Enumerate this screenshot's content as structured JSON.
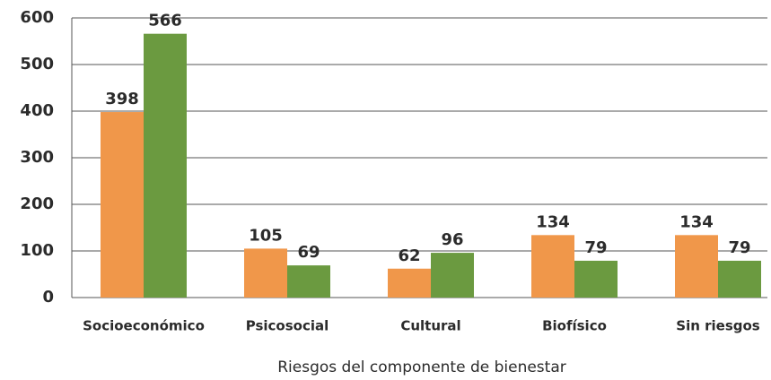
{
  "chart_data": {
    "type": "bar",
    "x_label": "Riesgos del componente de bienestar",
    "categories": [
      "Socioeconómico",
      "Psicosocial",
      "Cultural",
      "Biofísico",
      "Sin riesgos"
    ],
    "series": [
      {
        "color": "#f0974a",
        "values": [
          398,
          105,
          62,
          134,
          134
        ]
      },
      {
        "color": "#6b9a40",
        "values": [
          566,
          69,
          96,
          79,
          79
        ]
      }
    ],
    "ylim": [
      0,
      600
    ],
    "yticks": [
      0,
      100,
      200,
      300,
      400,
      500,
      600
    ],
    "grid": true
  }
}
